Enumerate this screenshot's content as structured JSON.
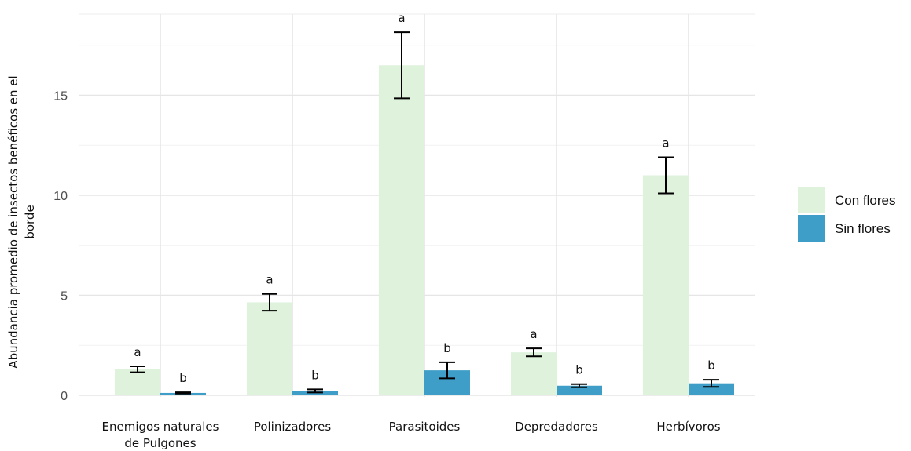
{
  "chart_data": {
    "type": "bar",
    "title": "",
    "xlabel": "",
    "ylabel_lines": [
      "Abundancia promedio de insectos benéficos en el",
      "borde"
    ],
    "categories": [
      [
        "Enemigos naturales",
        "de Pulgones"
      ],
      [
        "Polinizadores"
      ],
      [
        "Parasitoides"
      ],
      [
        "Depredadores"
      ],
      [
        "Herbívoros"
      ]
    ],
    "yticks": [
      "0",
      "5",
      "10",
      "15"
    ],
    "ylim": [
      0,
      19
    ],
    "grid": true,
    "legend_position": "right",
    "series": [
      {
        "name": "Con flores",
        "color": "#dff2dc",
        "values": [
          1.3,
          4.65,
          16.5,
          2.15,
          11.0
        ],
        "error": [
          0.15,
          0.42,
          1.65,
          0.2,
          0.9
        ],
        "labels": [
          "a",
          "a",
          "a",
          "a",
          "a"
        ]
      },
      {
        "name": "Sin flores",
        "color": "#3e9ec8",
        "values": [
          0.12,
          0.22,
          1.25,
          0.48,
          0.6
        ],
        "error": [
          0.03,
          0.08,
          0.4,
          0.08,
          0.18
        ],
        "labels": [
          "b",
          "b",
          "b",
          "b",
          "b"
        ]
      }
    ]
  }
}
